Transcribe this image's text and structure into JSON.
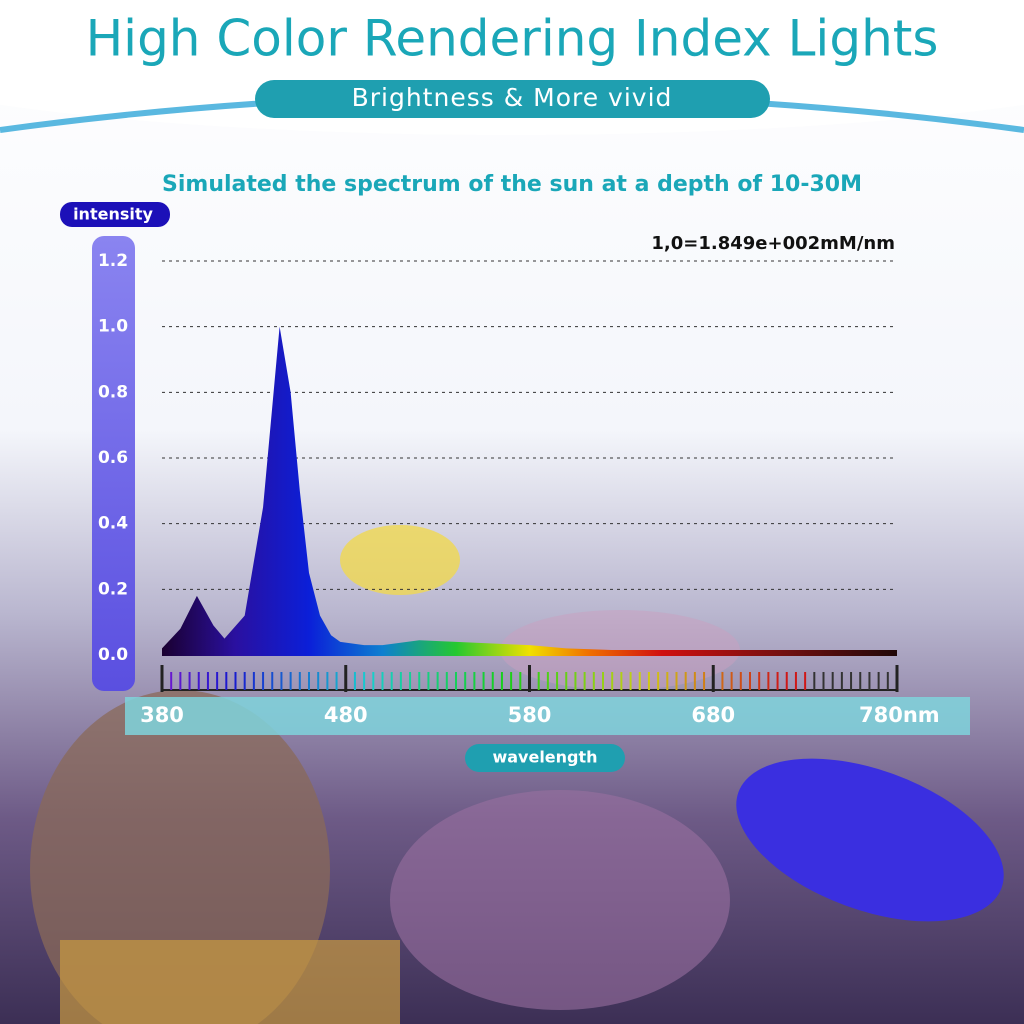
{
  "chart_data": {
    "type": "area",
    "title": "High Color Rendering Index Lights",
    "subtitle": "Brightness & More vivid",
    "chart_title": "Simulated the spectrum of the sun at a depth of 10-30M",
    "y_label": "intensity",
    "x_label": "wavelength",
    "annotation": "1,0=1.849e+002mM/nm",
    "x": [
      380,
      390,
      399,
      408,
      414,
      425,
      435,
      444,
      450,
      455,
      460,
      466,
      472,
      477,
      490,
      500,
      520,
      540,
      560,
      580,
      600,
      650,
      700,
      780
    ],
    "values": [
      0.02,
      0.08,
      0.18,
      0.09,
      0.05,
      0.12,
      0.45,
      1.0,
      0.8,
      0.5,
      0.25,
      0.12,
      0.06,
      0.04,
      0.03,
      0.03,
      0.045,
      0.04,
      0.035,
      0.03,
      0.02,
      0.01,
      0.005,
      0
    ],
    "xlim": [
      380,
      780
    ],
    "xticks": [
      380,
      480,
      580,
      680,
      {
        "value": 780,
        "label": "780nm"
      }
    ],
    "ylim": [
      0,
      1.2
    ],
    "yticks": [
      {
        "value": 0,
        "label": "0.0"
      },
      0.2,
      0.4,
      0.6,
      0.8,
      {
        "value": 1.0,
        "label": "1.0"
      },
      1.2
    ],
    "grid": true
  }
}
